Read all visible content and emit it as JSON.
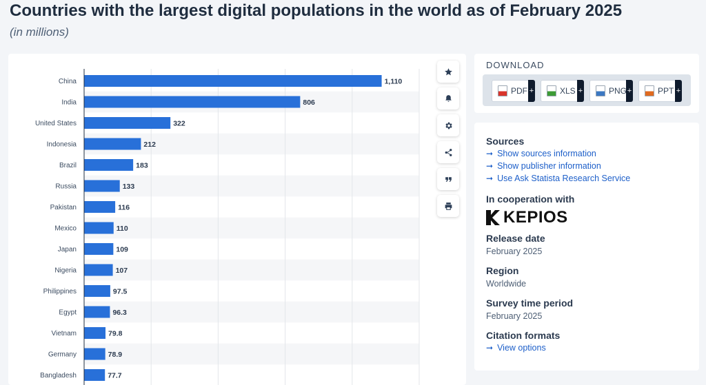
{
  "title": "Countries with the largest digital populations in the world as of February 2025",
  "subtitle": "(in millions)",
  "chart_data": {
    "type": "bar",
    "orientation": "horizontal",
    "categories": [
      "China",
      "India",
      "United States",
      "Indonesia",
      "Brazil",
      "Russia",
      "Pakistan",
      "Mexico",
      "Japan",
      "Nigeria",
      "Philippines",
      "Egypt",
      "Vietnam",
      "Germany",
      "Bangladesh"
    ],
    "values": [
      1110,
      806,
      322,
      212,
      183,
      133,
      116,
      110,
      109,
      107,
      97.5,
      96.3,
      79.8,
      78.9,
      77.7
    ],
    "value_labels": [
      "1,110",
      "806",
      "322",
      "212",
      "183",
      "133",
      "116",
      "110",
      "109",
      "107",
      "97.5",
      "96.3",
      "79.8",
      "78.9",
      "77.7"
    ],
    "xlim": [
      0,
      1250
    ],
    "bar_color": "#2870d9",
    "grid": true
  },
  "toolbar": [
    {
      "name": "favorite-button",
      "icon": "star-icon"
    },
    {
      "name": "notification-button",
      "icon": "bell-icon"
    },
    {
      "name": "settings-button",
      "icon": "gear-icon"
    },
    {
      "name": "share-button",
      "icon": "share-icon"
    },
    {
      "name": "cite-button",
      "icon": "quote-icon"
    },
    {
      "name": "print-button",
      "icon": "print-icon"
    }
  ],
  "download": {
    "heading": "DOWNLOAD",
    "plus": "+",
    "buttons": [
      {
        "label": "PDF",
        "color": "#d9342b"
      },
      {
        "label": "XLS",
        "color": "#3d9b35"
      },
      {
        "label": "PNG",
        "color": "#3b78c2"
      },
      {
        "label": "PPT",
        "color": "#e06a1f"
      }
    ]
  },
  "info": {
    "sources_heading": "Sources",
    "sources_links": [
      "Show sources information",
      "Show publisher information",
      "Use Ask Statista Research Service"
    ],
    "coop_heading": "In cooperation with",
    "partner_logo": "KEPIOS",
    "release_heading": "Release date",
    "release_value": "February 2025",
    "region_heading": "Region",
    "region_value": "Worldwide",
    "survey_heading": "Survey time period",
    "survey_value": "February 2025",
    "citation_heading": "Citation formats",
    "citation_link": "View options"
  }
}
